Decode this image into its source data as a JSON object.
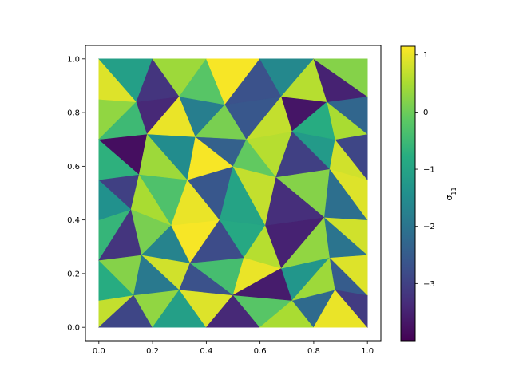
{
  "chart_data": {
    "type": "heatmap",
    "subtype": "tripcolor-triangulated-field",
    "title": "",
    "xlabel": "",
    "ylabel": "",
    "xlim": [
      -0.05,
      1.05
    ],
    "ylim": [
      -0.05,
      1.05
    ],
    "x_ticks": [
      0.0,
      0.2,
      0.4,
      0.6,
      0.8,
      1.0
    ],
    "x_tick_labels": [
      "0.0",
      "0.2",
      "0.4",
      "0.6",
      "0.8",
      "1.0"
    ],
    "y_ticks": [
      0.0,
      0.2,
      0.4,
      0.6,
      0.8,
      1.0
    ],
    "y_tick_labels": [
      "0.0",
      "0.2",
      "0.4",
      "0.6",
      "0.8",
      "1.0"
    ],
    "colormap": "viridis",
    "colorbar": {
      "label": "σ",
      "label_subscript": "11",
      "range": [
        -4.0,
        1.15
      ],
      "ticks": [
        1,
        0,
        -1,
        -2,
        -3
      ],
      "tick_labels": [
        "1",
        "0",
        "−1",
        "−2",
        "−3"
      ]
    },
    "grid": false,
    "mesh": {
      "points": [
        [
          0.0,
          0.0
        ],
        [
          0.2,
          0.0
        ],
        [
          0.4,
          0.0
        ],
        [
          0.6,
          0.0
        ],
        [
          0.8,
          0.0
        ],
        [
          1.0,
          0.0
        ],
        [
          0.0,
          0.1
        ],
        [
          0.13,
          0.12
        ],
        [
          0.3,
          0.14
        ],
        [
          0.5,
          0.12
        ],
        [
          0.72,
          0.1
        ],
        [
          0.88,
          0.14
        ],
        [
          1.0,
          0.12
        ],
        [
          0.0,
          0.25
        ],
        [
          0.16,
          0.27
        ],
        [
          0.34,
          0.24
        ],
        [
          0.54,
          0.26
        ],
        [
          0.68,
          0.22
        ],
        [
          0.86,
          0.26
        ],
        [
          1.0,
          0.27
        ],
        [
          0.0,
          0.4
        ],
        [
          0.12,
          0.44
        ],
        [
          0.27,
          0.38
        ],
        [
          0.45,
          0.4
        ],
        [
          0.62,
          0.38
        ],
        [
          0.84,
          0.41
        ],
        [
          1.0,
          0.4
        ],
        [
          0.0,
          0.55
        ],
        [
          0.15,
          0.57
        ],
        [
          0.33,
          0.55
        ],
        [
          0.5,
          0.6
        ],
        [
          0.66,
          0.56
        ],
        [
          0.86,
          0.59
        ],
        [
          1.0,
          0.55
        ],
        [
          0.0,
          0.7
        ],
        [
          0.18,
          0.72
        ],
        [
          0.36,
          0.71
        ],
        [
          0.55,
          0.7
        ],
        [
          0.72,
          0.73
        ],
        [
          0.88,
          0.7
        ],
        [
          1.0,
          0.72
        ],
        [
          0.0,
          0.85
        ],
        [
          0.14,
          0.84
        ],
        [
          0.3,
          0.86
        ],
        [
          0.47,
          0.83
        ],
        [
          0.68,
          0.86
        ],
        [
          0.85,
          0.84
        ],
        [
          1.0,
          0.86
        ],
        [
          0.0,
          1.0
        ],
        [
          0.2,
          1.0
        ],
        [
          0.4,
          1.0
        ],
        [
          0.6,
          1.0
        ],
        [
          0.8,
          1.0
        ],
        [
          1.0,
          1.0
        ]
      ],
      "rows": [
        6,
        7,
        7,
        7,
        7,
        7,
        7,
        6
      ],
      "values": [
        0.7,
        -2.9,
        0.3,
        -1.1,
        0.9,
        -3.4,
        -0.2,
        0.5,
        -2.2,
        1.0,
        -3.1,
        -0.8,
        0.2,
        -1.9,
        0.8,
        -2.7,
        -0.4,
        1.0,
        -3.6,
        -1.3,
        0.4,
        -2.5,
        0.9,
        -0.6,
        -3.2,
        0.1,
        -1.7,
        1.1,
        -2.8,
        -0.9,
        0.6,
        -3.5,
        0.3,
        -2.0,
        0.8,
        -1.4,
        -3.0,
        0.5,
        -0.3,
        1.0,
        -2.6,
        -1.0,
        0.7,
        -3.3,
        0.2,
        -2.1,
        0.9,
        -0.7,
        -3.8,
        0.4,
        -1.5,
        1.1,
        -2.4,
        -0.1,
        0.6,
        -3.0,
        -1.2,
        0.8,
        -2.9,
        0.3,
        -0.5,
        -3.4,
        1.0,
        -1.8,
        0.1,
        -2.6,
        0.7,
        -3.7,
        -0.8,
        0.5,
        -2.3,
        0.9,
        -1.1,
        -3.2,
        0.4,
        -0.2,
        1.1,
        -2.7,
        -1.6,
        0.6,
        -3.5,
        0.2,
        -0.9,
        -2.0,
        0.8,
        -1.3,
        0.3,
        -3.9,
        1.0,
        -0.6
      ]
    }
  }
}
